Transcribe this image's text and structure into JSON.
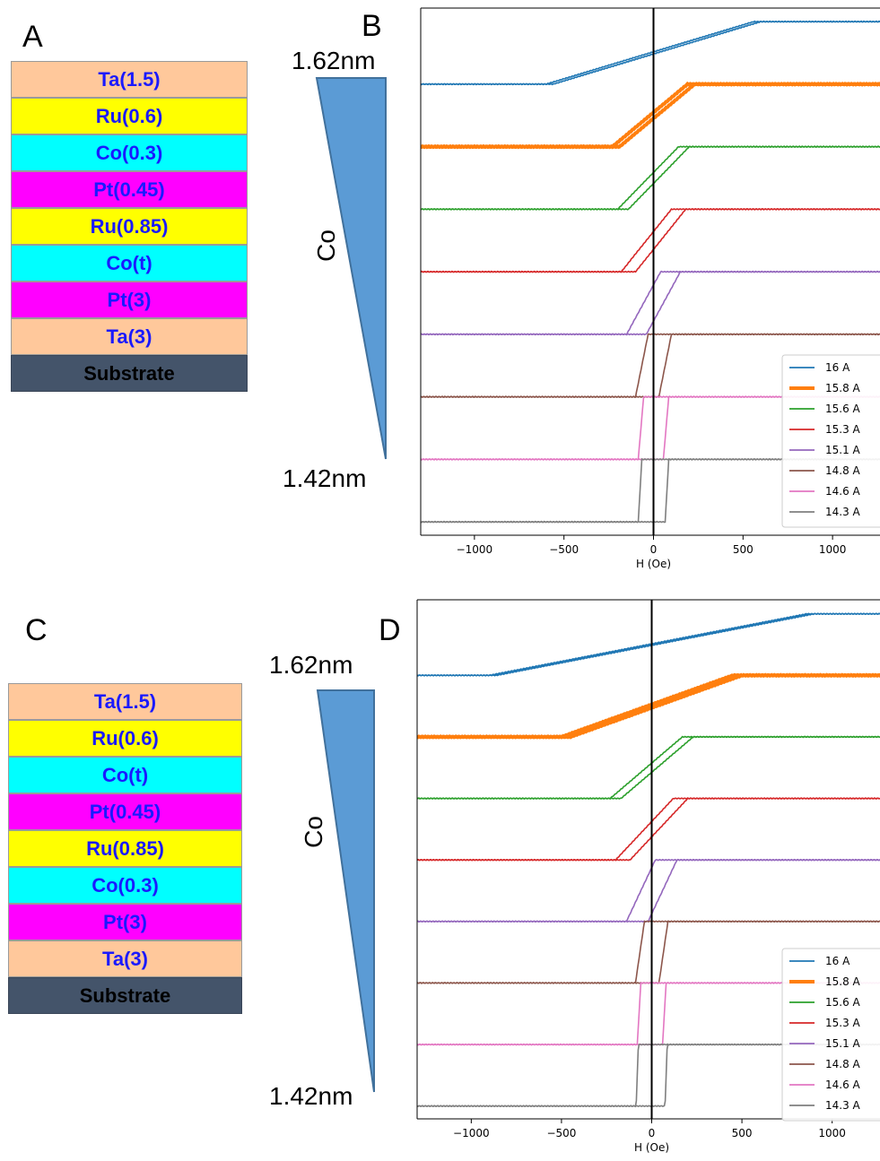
{
  "panels": {
    "a": "A",
    "b": "B",
    "c": "C",
    "d": "D"
  },
  "stack_a": [
    {
      "label": "Ta(1.5)",
      "color": "#ffc89b"
    },
    {
      "label": "Ru(0.6)",
      "color": "#ffff00"
    },
    {
      "label": "Co(0.3)",
      "color": "#00ffff"
    },
    {
      "label": "Pt(0.45)",
      "color": "#ff00ff"
    },
    {
      "label": "Ru(0.85)",
      "color": "#ffff00"
    },
    {
      "label": "Co(t)",
      "color": "#00ffff"
    },
    {
      "label": "Pt(3)",
      "color": "#ff00ff"
    },
    {
      "label": "Ta(3)",
      "color": "#ffc89b"
    },
    {
      "label": "Substrate",
      "color": "#44546a"
    }
  ],
  "stack_c": [
    {
      "label": "Ta(1.5)",
      "color": "#ffc89b"
    },
    {
      "label": "Ru(0.6)",
      "color": "#ffff00"
    },
    {
      "label": "Co(t)",
      "color": "#00ffff"
    },
    {
      "label": "Pt(0.45)",
      "color": "#ff00ff"
    },
    {
      "label": "Ru(0.85)",
      "color": "#ffff00"
    },
    {
      "label": "Co(0.3)",
      "color": "#00ffff"
    },
    {
      "label": "Pt(3)",
      "color": "#ff00ff"
    },
    {
      "label": "Ta(3)",
      "color": "#ffc89b"
    },
    {
      "label": "Substrate",
      "color": "#44546a"
    }
  ],
  "wedge": {
    "top_label": "1.62nm",
    "bottom_label": "1.42nm",
    "axis_label": "Co",
    "color": "#5b9bd5"
  },
  "chart_data": [
    {
      "id": "B",
      "type": "line",
      "xlabel": "H (Oe)",
      "xlim": [
        -1300,
        1300
      ],
      "xticks": [
        -1000,
        -500,
        0,
        500,
        1000
      ],
      "yticks_shown": false,
      "zero_line": true,
      "legend": "lower-right",
      "series": [
        {
          "name": "16 A",
          "color": "#1f77b4",
          "hc": 20,
          "hs": 600,
          "thick": false
        },
        {
          "name": "15.8 A",
          "color": "#ff7f0e",
          "hc": 20,
          "hs": 230,
          "thick": true
        },
        {
          "name": "15.6 A",
          "color": "#2ca02c",
          "hc": 30,
          "hs": 200,
          "thick": false
        },
        {
          "name": "15.3 A",
          "color": "#d62728",
          "hc": 40,
          "hs": 180,
          "thick": false
        },
        {
          "name": "15.1 A",
          "color": "#9467bd",
          "hc": 55,
          "hs": 150,
          "thick": false
        },
        {
          "name": "14.8 A",
          "color": "#8c564b",
          "hc": 65,
          "hs": 100,
          "thick": false
        },
        {
          "name": "14.6 A",
          "color": "#e377c2",
          "hc": 70,
          "hs": 85,
          "thick": false
        },
        {
          "name": "14.3 A",
          "color": "#7f7f7f",
          "hc": 75,
          "hs": 85,
          "thick": false
        }
      ]
    },
    {
      "id": "D",
      "type": "line",
      "xlabel": "H (Oe)",
      "xlim": [
        -1300,
        1300
      ],
      "xticks": [
        -1000,
        -500,
        0,
        500,
        1000
      ],
      "yticks_shown": false,
      "zero_line": true,
      "legend": "lower-right",
      "series": [
        {
          "name": "16 A",
          "color": "#1f77b4",
          "hc": 20,
          "hs": 900,
          "thick": false
        },
        {
          "name": "15.8 A",
          "color": "#ff7f0e",
          "hc": 25,
          "hs": 500,
          "thick": true
        },
        {
          "name": "15.6 A",
          "color": "#2ca02c",
          "hc": 30,
          "hs": 230,
          "thick": false
        },
        {
          "name": "15.3 A",
          "color": "#d62728",
          "hc": 40,
          "hs": 200,
          "thick": false
        },
        {
          "name": "15.1 A",
          "color": "#9467bd",
          "hc": 60,
          "hs": 140,
          "thick": false
        },
        {
          "name": "14.8 A",
          "color": "#8c564b",
          "hc": 65,
          "hs": 90,
          "thick": false
        },
        {
          "name": "14.6 A",
          "color": "#e377c2",
          "hc": 70,
          "hs": 80,
          "thick": false
        },
        {
          "name": "14.3 A",
          "color": "#7f7f7f",
          "hc": 80,
          "hs": 80,
          "thick": false
        }
      ]
    }
  ]
}
